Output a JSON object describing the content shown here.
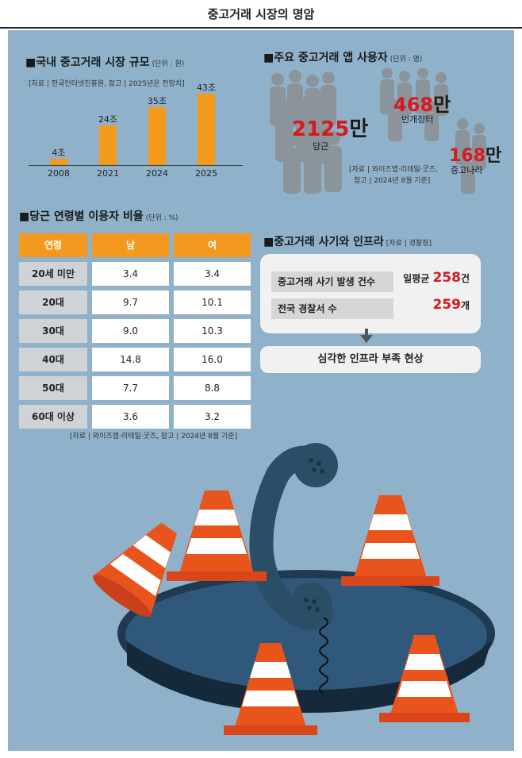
{
  "header": {
    "title": "중고거래 시장의 명암"
  },
  "market_size": {
    "title": "■국내 중고거래 시장 규모",
    "unit": "(단위 : 원)",
    "source": "[자료 | 한국인터넷진흥원, 참고 | 2025년은 전망치]",
    "chart_data": {
      "type": "bar",
      "categories": [
        "2008",
        "2021",
        "2024",
        "2025"
      ],
      "values": [
        4,
        24,
        35,
        43
      ],
      "value_labels": [
        "4조",
        "24조",
        "35조",
        "43조"
      ],
      "color": "#f39a1e"
    }
  },
  "app_users": {
    "title": "■주요 중고거래 앱 사용자",
    "unit": "(단위 : 명)",
    "source_line1": "[자료 | 와이즈앱·리테일·굿즈,",
    "source_line2": "참고 | 2024년 8월 기준]",
    "apps": [
      {
        "num": "2125",
        "unit": "만",
        "name": "당근"
      },
      {
        "num": "468",
        "unit": "만",
        "name": "번개장터"
      },
      {
        "num": "168",
        "unit": "만",
        "name": "중고나라"
      }
    ]
  },
  "age_ratio": {
    "title": "■당근 연령별 이용자 비율",
    "unit": "(단위 : %)",
    "headers": [
      "연령",
      "남",
      "여"
    ],
    "rows": [
      [
        "20세 미만",
        "3.4",
        "3.4"
      ],
      [
        "20대",
        "9.7",
        "10.1"
      ],
      [
        "30대",
        "9.0",
        "10.3"
      ],
      [
        "40대",
        "14.8",
        "16.0"
      ],
      [
        "50대",
        "7.7",
        "8.8"
      ],
      [
        "60대 이상",
        "3.6",
        "3.2"
      ]
    ],
    "source": "[자료 | 와이즈앱·리테일·굿즈, 참고 | 2024년 8월 기준]"
  },
  "fraud": {
    "title": "■중고거래 사기와 인프라",
    "unit": "[자료 | 경찰청]",
    "row1_label": "중고거래 사기 발생 건수",
    "row1_prefix": "일평균 ",
    "row1_num": "258",
    "row1_unit": "건",
    "row2_label": "전국 경찰서 수",
    "row2_num": "259",
    "row2_unit": "개",
    "result": "심각한 인프라 부족 현상"
  },
  "colors": {
    "accent": "#f39a1e",
    "highlight": "#d7191f",
    "background": "#8fb2ca"
  }
}
